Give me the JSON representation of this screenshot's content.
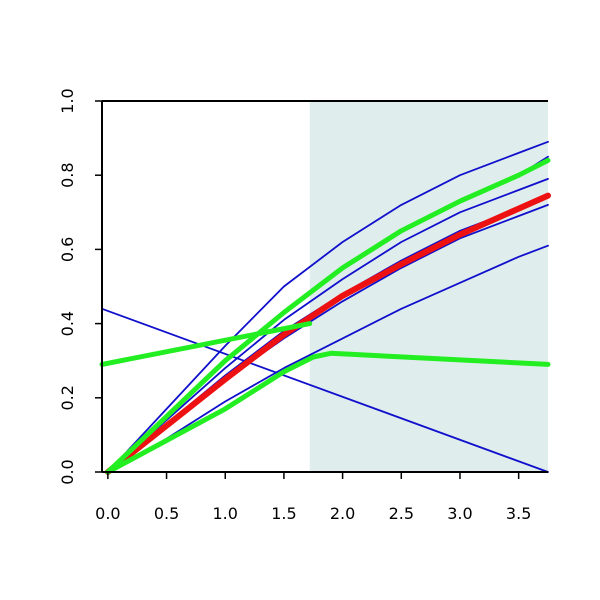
{
  "chart_data": {
    "type": "line",
    "title": "",
    "xlabel": "",
    "ylabel": "",
    "xlim": [
      -0.05,
      3.75
    ],
    "ylim": [
      0.0,
      1.0
    ],
    "x_ticks": [
      0.0,
      0.5,
      1.0,
      1.5,
      2.0,
      2.5,
      3.0,
      3.5
    ],
    "x_tick_labels": [
      "0.0",
      "0.5",
      "1.0",
      "1.5",
      "2.0",
      "2.5",
      "3.0",
      "3.5"
    ],
    "y_ticks": [
      0.0,
      0.2,
      0.4,
      0.6,
      0.8,
      1.0
    ],
    "y_tick_labels": [
      "0.0",
      "0.2",
      "0.4",
      "0.6",
      "0.8",
      "1.0"
    ],
    "grid": false,
    "legend": "none",
    "shaded_region": {
      "x_from": 1.72,
      "x_to": 3.75,
      "color": "#e0eded"
    },
    "colors": {
      "blue": "#1010cc",
      "green": "#22ee22",
      "red": "#ee1111",
      "axis": "#000000"
    },
    "series": [
      {
        "color": "blue",
        "width": 1.8,
        "x": [
          0.0,
          0.5,
          1.0,
          1.5,
          2.0,
          2.5,
          3.0,
          3.5,
          3.75
        ],
        "y": [
          0.0,
          0.17,
          0.34,
          0.5,
          0.62,
          0.72,
          0.8,
          0.86,
          0.89
        ]
      },
      {
        "color": "blue",
        "width": 1.8,
        "x": [
          0.0,
          0.5,
          1.0,
          1.5,
          2.0,
          2.5,
          3.0,
          3.5,
          3.75
        ],
        "y": [
          0.0,
          0.15,
          0.3,
          0.43,
          0.55,
          0.65,
          0.73,
          0.8,
          0.85
        ]
      },
      {
        "color": "blue",
        "width": 1.8,
        "x": [
          0.0,
          0.5,
          1.0,
          1.5,
          2.0,
          2.5,
          3.0,
          3.5,
          3.75
        ],
        "y": [
          0.0,
          0.14,
          0.28,
          0.41,
          0.52,
          0.62,
          0.7,
          0.76,
          0.79
        ]
      },
      {
        "color": "blue",
        "width": 1.8,
        "x": [
          0.0,
          0.5,
          1.0,
          1.5,
          2.0,
          2.5,
          3.0,
          3.5,
          3.75
        ],
        "y": [
          0.0,
          0.13,
          0.26,
          0.38,
          0.48,
          0.57,
          0.65,
          0.71,
          0.74
        ]
      },
      {
        "color": "blue",
        "width": 1.8,
        "x": [
          0.0,
          0.5,
          1.0,
          1.5,
          2.0,
          2.5,
          3.0,
          3.5,
          3.75
        ],
        "y": [
          0.0,
          0.12,
          0.25,
          0.36,
          0.46,
          0.55,
          0.63,
          0.69,
          0.72
        ]
      },
      {
        "color": "blue",
        "width": 1.8,
        "x": [
          0.0,
          0.5,
          1.0,
          1.5,
          2.0,
          2.5,
          3.0,
          3.5,
          3.75
        ],
        "y": [
          0.0,
          0.09,
          0.19,
          0.28,
          0.36,
          0.44,
          0.51,
          0.58,
          0.61
        ]
      },
      {
        "color": "blue",
        "width": 1.8,
        "x": [
          -0.05,
          3.75
        ],
        "y": [
          0.44,
          0.0
        ]
      },
      {
        "color": "red",
        "width": 6,
        "x": [
          0.0,
          0.5,
          1.0,
          1.5,
          2.0,
          2.5,
          3.0,
          3.5,
          3.75
        ],
        "y": [
          0.0,
          0.125,
          0.25,
          0.37,
          0.475,
          0.56,
          0.64,
          0.71,
          0.745
        ]
      },
      {
        "color": "green",
        "width": 5,
        "x": [
          0.0,
          0.5,
          1.0,
          1.5,
          2.0,
          2.5,
          3.0,
          3.5,
          3.75
        ],
        "y": [
          0.0,
          0.15,
          0.3,
          0.43,
          0.55,
          0.65,
          0.73,
          0.8,
          0.84
        ]
      },
      {
        "color": "green",
        "width": 5,
        "x": [
          -0.05,
          1.4,
          1.72
        ],
        "y": [
          0.29,
          0.38,
          0.4
        ]
      },
      {
        "color": "green",
        "width": 5,
        "x": [
          0.0,
          1.0,
          1.5,
          1.75,
          1.9,
          3.75
        ],
        "y": [
          0.0,
          0.17,
          0.27,
          0.31,
          0.32,
          0.29
        ]
      }
    ]
  }
}
